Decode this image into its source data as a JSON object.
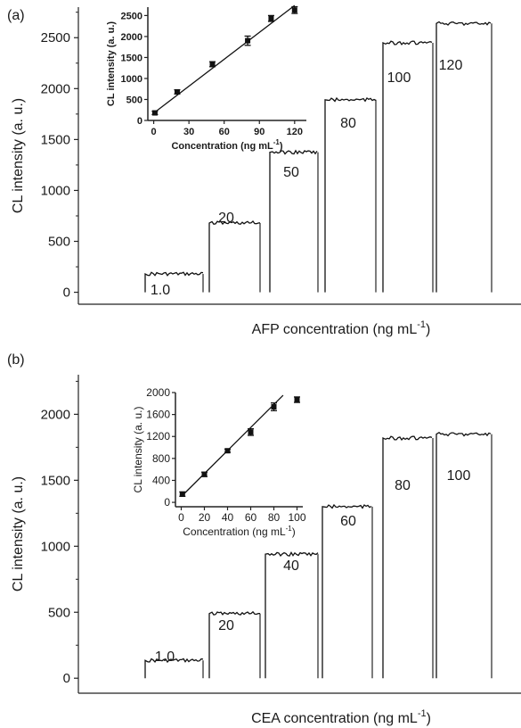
{
  "chart_data": [
    {
      "panel_label": "(a)",
      "type": "line",
      "xlabel": "AFP concentration (ng mL",
      "xlabel_sup": "-1",
      "xlabel_close": ")",
      "ylabel": "CL intensity (a. u.)",
      "ylim": [
        -100,
        2800
      ],
      "yticks": [
        "0",
        "500",
        "1000",
        "1500",
        "2000",
        "2500"
      ],
      "steps": [
        {
          "label": "1.0",
          "value": 180
        },
        {
          "label": "20",
          "value": 680
        },
        {
          "label": "50",
          "value": 1375
        },
        {
          "label": "80",
          "value": 1890
        },
        {
          "label": "100",
          "value": 2450
        },
        {
          "label": "120",
          "value": 2640
        }
      ],
      "inset": {
        "type": "scatter",
        "xlabel": "Concentration (ng mL",
        "xlabel_sup": "-1",
        "xlabel_close": ")",
        "ylabel": "CL intensity (a. u.)",
        "xlim": [
          -5,
          130
        ],
        "ylim": [
          0,
          2700
        ],
        "xticks": [
          "0",
          "30",
          "60",
          "90",
          "120"
        ],
        "yticks": [
          "0",
          "500",
          "1000",
          "1500",
          "2000",
          "2500"
        ],
        "x": [
          1,
          20,
          50,
          80,
          100,
          120
        ],
        "y": [
          180,
          680,
          1340,
          1900,
          2430,
          2630
        ],
        "err": [
          40,
          50,
          60,
          110,
          70,
          80
        ],
        "fit": [
          [
            0,
            175
          ],
          [
            120,
            2740
          ]
        ]
      }
    },
    {
      "panel_label": "(b)",
      "type": "line",
      "xlabel": "CEA concentration (ng mL",
      "xlabel_sup": "-1",
      "xlabel_close": ")",
      "ylabel": "CL intensity (a. u.)",
      "ylim": [
        -100,
        2300
      ],
      "yticks": [
        "0",
        "500",
        "1000",
        "1500",
        "2000"
      ],
      "steps": [
        {
          "label": "1.0",
          "value": 135
        },
        {
          "label": "20",
          "value": 490
        },
        {
          "label": "40",
          "value": 940
        },
        {
          "label": "60",
          "value": 1300
        },
        {
          "label": "80",
          "value": 1820
        },
        {
          "label": "100",
          "value": 1850
        }
      ],
      "inset": {
        "type": "scatter",
        "xlabel": "Concentration (ng mL",
        "xlabel_sup": "-1",
        "xlabel_close": ")",
        "ylabel": "CL intensity (a. u.)",
        "xlim": [
          -5,
          105
        ],
        "ylim": [
          -80,
          2000
        ],
        "xticks": [
          "0",
          "20",
          "40",
          "60",
          "80",
          "100"
        ],
        "yticks": [
          "0",
          "400",
          "800",
          "1200",
          "1600",
          "2000"
        ],
        "x": [
          1,
          20,
          40,
          60,
          80,
          100
        ],
        "y": [
          150,
          510,
          940,
          1280,
          1740,
          1870
        ],
        "err": [
          40,
          40,
          30,
          60,
          70,
          50
        ],
        "fit": [
          [
            0,
            105
          ],
          [
            88,
            1950
          ]
        ]
      }
    }
  ]
}
